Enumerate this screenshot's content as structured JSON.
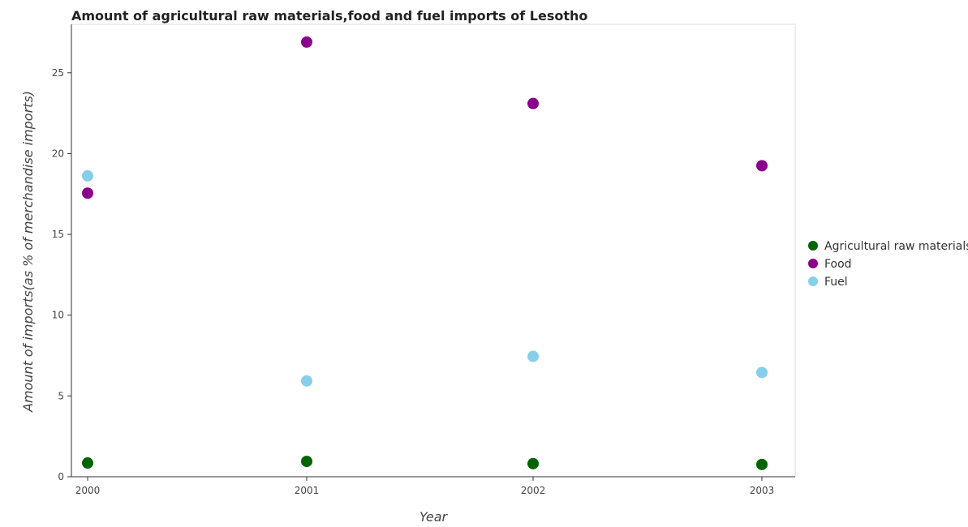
{
  "chart_data": {
    "type": "scatter",
    "title": "Amount of agricultural raw materials,food and fuel imports of Lesotho",
    "xlabel": "Year",
    "ylabel": "Amount of imports(as % of merchandise imports)",
    "categories": [
      "2000",
      "2001",
      "2002",
      "2003"
    ],
    "ylim": [
      0,
      28
    ],
    "yticks": [
      0,
      5,
      10,
      15,
      20,
      25
    ],
    "grid": false,
    "legend_position": "right",
    "series": [
      {
        "name": "Agricultural raw materials",
        "color": "#006400",
        "values": [
          0.85,
          0.95,
          0.81,
          0.76
        ]
      },
      {
        "name": "Food",
        "color": "#8B008B",
        "values": [
          17.55,
          26.9,
          23.1,
          19.25
        ]
      },
      {
        "name": "Fuel",
        "color": "#87CEEB",
        "values": [
          18.62,
          5.93,
          7.45,
          6.45
        ]
      }
    ]
  }
}
